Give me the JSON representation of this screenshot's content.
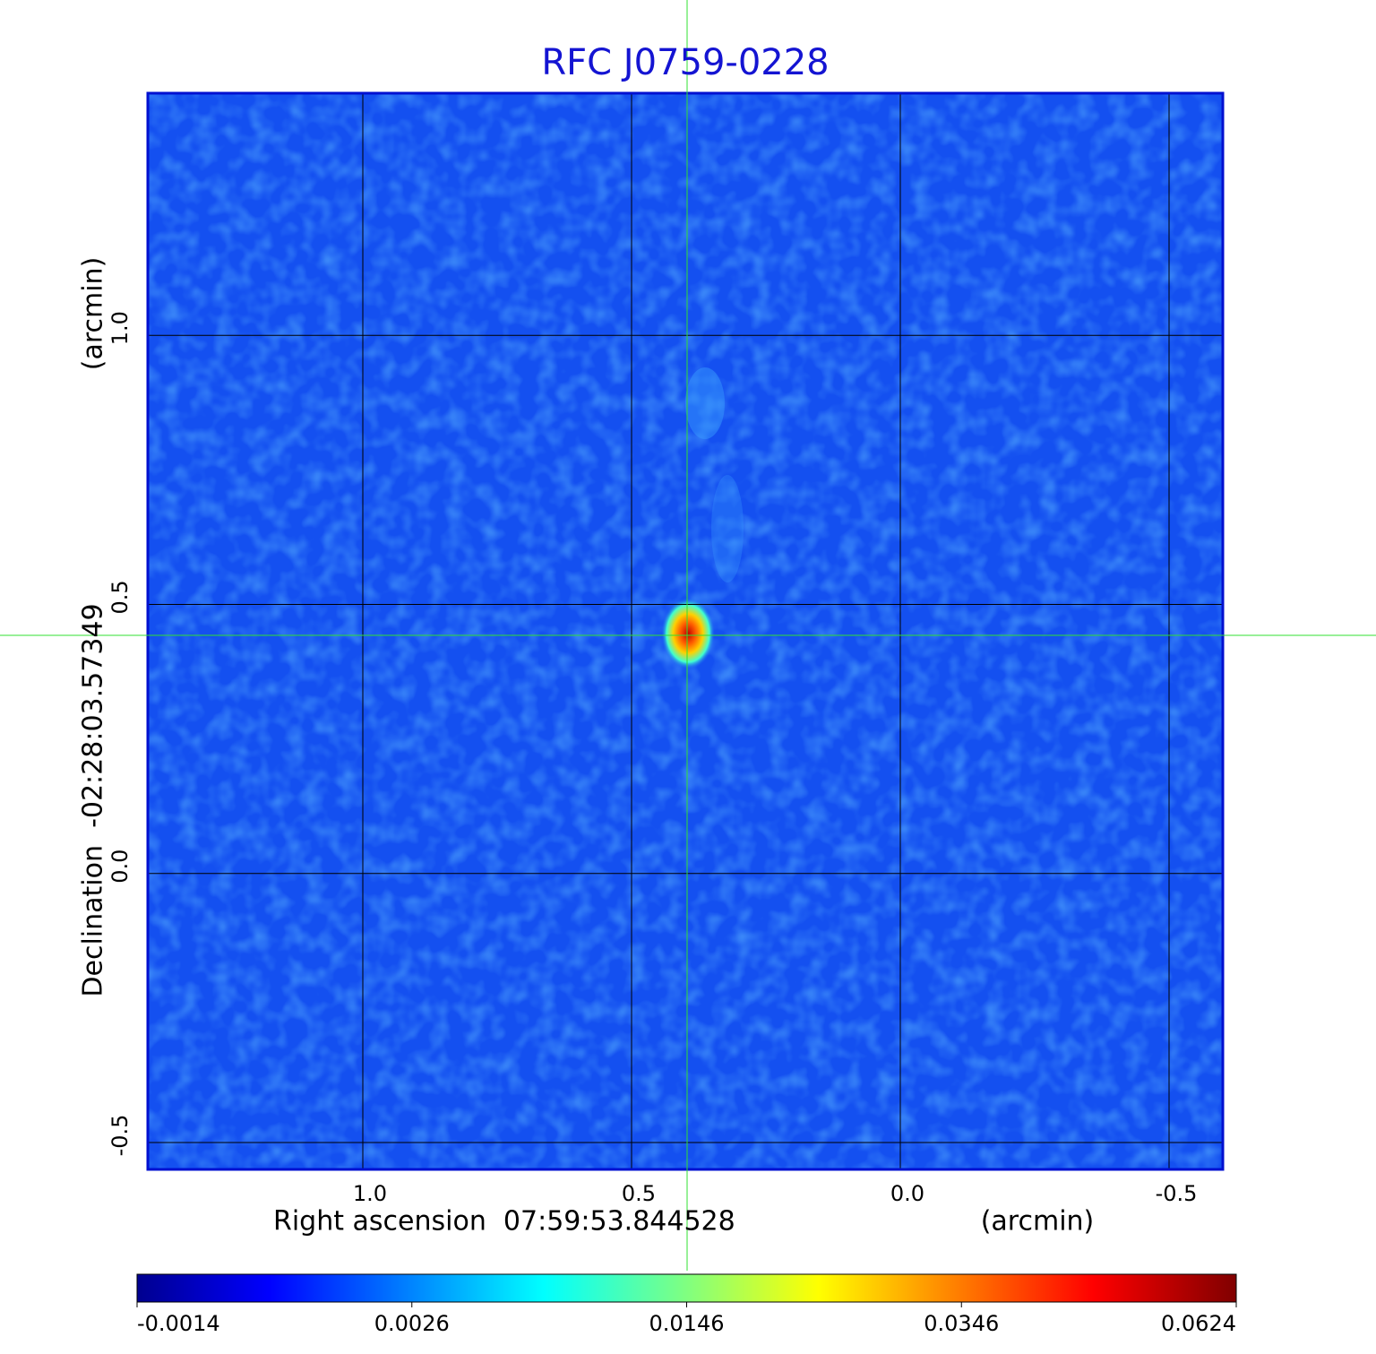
{
  "chart_data": {
    "type": "image",
    "title": "RFC J0759-0228",
    "xlabel": "Right ascension  07:59:53.844528",
    "xunit": "(arcmin)",
    "ylabel": "Declination  -02:28:03.57349",
    "yunit": "(arcmin)",
    "xlim": [
      1.4,
      -0.6
    ],
    "ylim": [
      -0.55,
      1.45
    ],
    "xticks": [
      {
        "value": 1.0,
        "label": "1.0"
      },
      0.5,
      {
        "value": 0.0,
        "label": "0.0"
      },
      -0.5
    ],
    "yticks": [
      {
        "value": 1.0,
        "label": "1.0"
      },
      0.5,
      {
        "value": 0.0,
        "label": "0.0"
      },
      -0.5
    ],
    "grid": true,
    "colormap": "jet",
    "colorbar_ticks": [
      -0.0014,
      0.0026,
      0.0146,
      0.0346,
      0.0624
    ]
  }
}
